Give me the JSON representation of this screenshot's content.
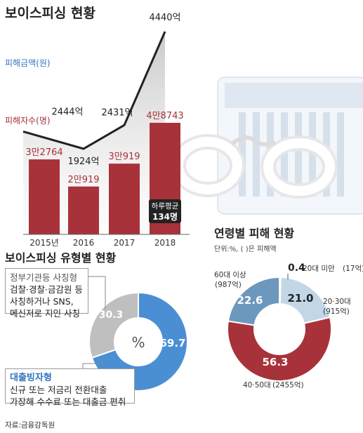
{
  "title_top": "보이스피싱 현황",
  "damage_amount_label": "피해금액(원)",
  "victims_label": "피해자수(명)",
  "chart_data": [
    {
      "type": "bar",
      "categories": [
        "2015년",
        "2016",
        "2017",
        "2018"
      ],
      "series": [
        {
          "name": "피해금액(원)",
          "type": "line",
          "values": [
            2444,
            1924,
            2431,
            4440
          ],
          "labels": [
            "2444억",
            "1924억",
            "2431억",
            "4440억"
          ]
        },
        {
          "name": "피해자수(명)",
          "type": "bar",
          "values": [
            32764,
            20919,
            30919,
            48743
          ],
          "labels": [
            "3만2764",
            "2만919",
            "3만919",
            "4만8743"
          ]
        }
      ],
      "annotation": {
        "line1": "하루평균",
        "line2": "134명"
      }
    },
    {
      "type": "pie",
      "title": "보이스피싱 유형별 현황",
      "center_label": "%",
      "slices": [
        {
          "label": "대출빙자형",
          "value": 69.7,
          "color": "#4a8fd4"
        },
        {
          "label": "정부기관등 사칭형",
          "value": 30.3,
          "color": "#bfbfbf"
        }
      ]
    },
    {
      "type": "pie",
      "title": "연령별 피해 현황",
      "subtitle": "단위:%, ( )은 피해액",
      "slices": [
        {
          "label": "20대 미만",
          "amount": "(17억)",
          "value": 0.4,
          "color": "#eeeeee"
        },
        {
          "label": "20·30대",
          "amount": "(915억)",
          "value": 21.0,
          "color": "#c2d6e6"
        },
        {
          "label": "40·50대",
          "amount": "(2455억)",
          "value": 56.3,
          "color": "#a8323a"
        },
        {
          "label": "60대 이상",
          "amount": "(987억)",
          "value": 22.6,
          "color": "#6d98bd"
        }
      ]
    }
  ],
  "type_boxes": {
    "gov": {
      "title": "정부기관등 사칭형",
      "lines": [
        "검찰·경찰·금감원 등",
        "사칭하거나 SNS,",
        "메신저로 지인 사칭"
      ]
    },
    "loan": {
      "title": "대출빙자형",
      "lines": [
        "신규 또는 저금리 전환대출",
        "가장해 수수료 또는 대출금 편취"
      ]
    }
  },
  "source": "자료:금융감독원",
  "colors": {
    "bar": "#a8323a",
    "pie_blue": "#4a8fd4",
    "pie_gray": "#bfbfbf",
    "area": "#d3d3d3",
    "card": "#dde6f0"
  }
}
